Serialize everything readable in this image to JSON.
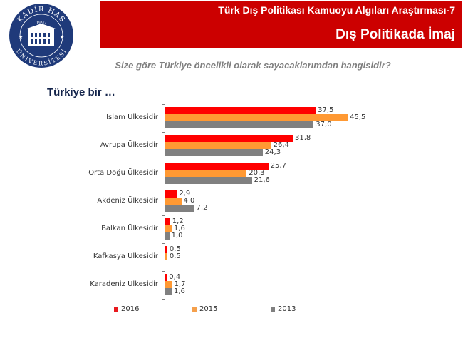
{
  "header": {
    "logo": {
      "name": "KADİR HAS",
      "year": "1997",
      "bottom": "ÜNİVERSİTESİ"
    },
    "subtitle": "Türk Dış Politikası  Kamuoyu Algıları  Araştırması-7",
    "title": "Dış Politikada İmaj"
  },
  "question": "Size göre Türkiye öncelikli olarak sayacaklarımdan hangisidir?",
  "section_title": "Türkiye bir …",
  "colors": {
    "banner": "#cc0000",
    "s2016": "#ff0000",
    "s2015": "#ff9933",
    "s2013": "#808080"
  },
  "chart_data": {
    "type": "bar",
    "orientation": "horizontal",
    "title": "Türkiye bir …",
    "xlabel": "",
    "ylabel": "",
    "categories": [
      "İslam Ülkesidir",
      "Avrupa Ülkesidir",
      "Orta Doğu Ülkesidir",
      "Akdeniz Ülkesidir",
      "Balkan Ülkesidir",
      "Kafkasya Ülkesidir",
      "Karadeniz Ülkesidir"
    ],
    "series": [
      {
        "name": "2016",
        "color": "#ff0000",
        "values": [
          37.5,
          31.8,
          25.7,
          2.9,
          1.2,
          0.5,
          0.4
        ],
        "labels": [
          "37,5",
          "31,8",
          "25,7",
          "2,9",
          "1,2",
          "0,5",
          "0,4"
        ]
      },
      {
        "name": "2015",
        "color": "#ff9933",
        "values": [
          45.5,
          26.4,
          20.3,
          4.0,
          1.6,
          0.5,
          1.7
        ],
        "labels": [
          "45,5",
          "26,4",
          "20,3",
          "4,0",
          "1,6",
          "0,5",
          "1,7"
        ]
      },
      {
        "name": "2013",
        "color": "#808080",
        "values": [
          37.0,
          24.3,
          21.6,
          7.2,
          1.0,
          null,
          1.6
        ],
        "labels": [
          "37,0",
          "24,3",
          "21,6",
          "7,2",
          "1,0",
          "",
          "1,6"
        ]
      }
    ],
    "grid": false,
    "legend_position": "bottom",
    "legend": [
      "2016",
      "2015",
      "2013"
    ]
  }
}
